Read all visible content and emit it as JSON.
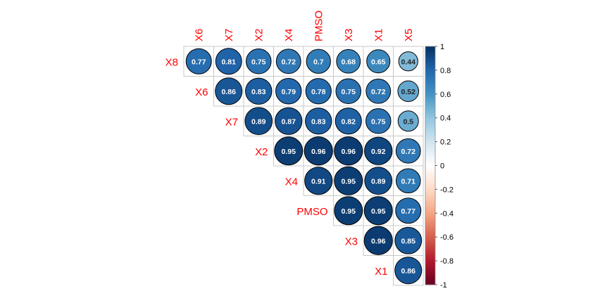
{
  "chart_data": {
    "type": "heatmap",
    "subtype": "correlation-circle-upper-triangle",
    "title": "",
    "xlabel": "",
    "ylabel": "",
    "column_labels": [
      "X6",
      "X7",
      "X2",
      "X4",
      "PMSO",
      "X3",
      "X1",
      "X5"
    ],
    "row_labels": [
      "X8",
      "X6",
      "X7",
      "X2",
      "X4",
      "PMSO",
      "X3",
      "X1"
    ],
    "rows": [
      {
        "label": "X8",
        "values": [
          0.77,
          0.81,
          0.75,
          0.72,
          0.7,
          0.68,
          0.65,
          0.44
        ]
      },
      {
        "label": "X6",
        "values": [
          null,
          0.86,
          0.83,
          0.79,
          0.78,
          0.75,
          0.72,
          0.52
        ]
      },
      {
        "label": "X7",
        "values": [
          null,
          null,
          0.89,
          0.87,
          0.83,
          0.82,
          0.75,
          0.5
        ]
      },
      {
        "label": "X2",
        "values": [
          null,
          null,
          null,
          0.95,
          0.96,
          0.96,
          0.92,
          0.72
        ]
      },
      {
        "label": "X4",
        "values": [
          null,
          null,
          null,
          null,
          0.91,
          0.95,
          0.89,
          0.71
        ]
      },
      {
        "label": "PMSO",
        "values": [
          null,
          null,
          null,
          null,
          null,
          0.95,
          0.95,
          0.77
        ]
      },
      {
        "label": "X3",
        "values": [
          null,
          null,
          null,
          null,
          null,
          null,
          0.96,
          0.85
        ]
      },
      {
        "label": "X1",
        "values": [
          null,
          null,
          null,
          null,
          null,
          null,
          null,
          0.86
        ]
      }
    ],
    "colorbar": {
      "range": [
        -1,
        1
      ],
      "ticks": [
        "1",
        "0.8",
        "0.6",
        "0.4",
        "0.2",
        "0",
        "-0.2",
        "-0.4",
        "-0.6",
        "-0.8",
        "-1"
      ]
    },
    "label_color": "#FF0000",
    "grid": true
  }
}
